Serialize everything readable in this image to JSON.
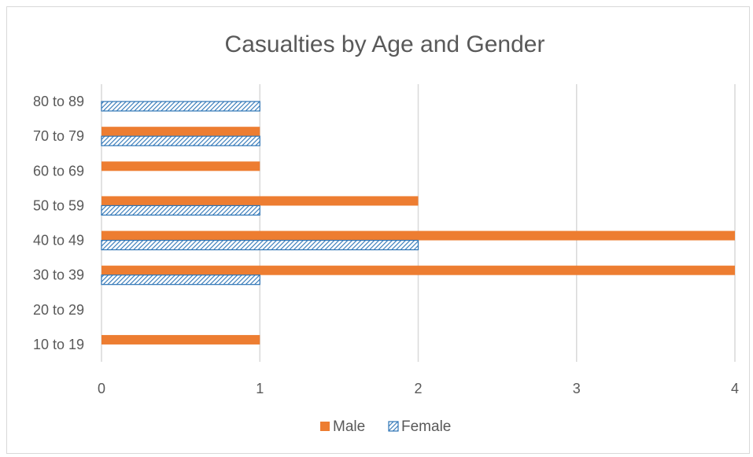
{
  "chart_data": {
    "type": "bar",
    "orientation": "horizontal",
    "title": "Casualties by Age and Gender",
    "xlabel": "",
    "ylabel": "",
    "categories": [
      "10 to 19",
      "20 to 29",
      "30 to 39",
      "40 to 49",
      "50 to 59",
      "60 to 69",
      "70 to 79",
      "80 to 89"
    ],
    "series": [
      {
        "name": "Male",
        "color": "#ed7d31",
        "pattern": "solid",
        "values": [
          1,
          0,
          4,
          4,
          2,
          1,
          1,
          0
        ]
      },
      {
        "name": "Female",
        "color": "#2e75b6",
        "pattern": "diagonal-hatch",
        "values": [
          0,
          0,
          1,
          2,
          1,
          0,
          1,
          1
        ]
      }
    ],
    "xlim": [
      0,
      4
    ],
    "xticks": [
      "0",
      "1",
      "2",
      "3",
      "4"
    ],
    "grid": "vertical",
    "legend": "bottom"
  }
}
